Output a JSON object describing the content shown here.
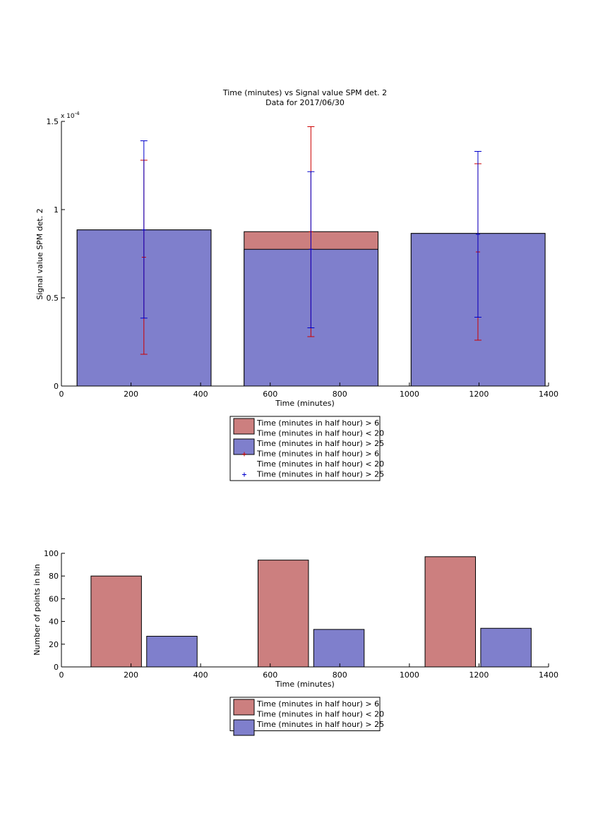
{
  "chart_data": [
    {
      "type": "bar",
      "title": "Time (minutes) vs Signal value SPM det. 2",
      "subtitle": "Data for 2017/06/30",
      "xlabel": "Time (minutes)",
      "ylabel": "Signal value SPM det. 2",
      "y_exponent_label": "x 10",
      "y_exponent_power": "-4",
      "xlim": [
        0,
        1400
      ],
      "ylim": [
        0,
        1.5
      ],
      "xticks": [
        0,
        200,
        400,
        600,
        800,
        1000,
        1200,
        1400
      ],
      "xtick_labels": [
        "0",
        "200",
        "400",
        "600",
        "800",
        "1000",
        "1200",
        "1400"
      ],
      "yticks": [
        0,
        0.5,
        1,
        1.5
      ],
      "ytick_labels": [
        "0",
        "0.5",
        "1",
        "1.5"
      ],
      "bins": [
        {
          "x_start": 45,
          "x_end": 430,
          "red_value": 0.885,
          "blue_value": 0.885
        },
        {
          "x_start": 525,
          "x_end": 910,
          "red_value": 0.875,
          "blue_value": 0.775
        },
        {
          "x_start": 1005,
          "x_end": 1390,
          "red_value": 0.865,
          "blue_value": 0.865
        }
      ],
      "errorbars_red": [
        {
          "x": 237,
          "y": 0.73,
          "low": 0.18,
          "high": 1.28
        },
        {
          "x": 717,
          "y": 0.875,
          "low": 0.28,
          "high": 1.47
        },
        {
          "x": 1197,
          "y": 0.76,
          "low": 0.26,
          "high": 1.26
        }
      ],
      "errorbars_blue": [
        {
          "x": 237,
          "y": 0.885,
          "low": 0.385,
          "high": 1.39
        },
        {
          "x": 717,
          "y": 0.775,
          "low": 0.33,
          "high": 1.215
        },
        {
          "x": 1197,
          "y": 0.86,
          "low": 0.39,
          "high": 1.33
        }
      ],
      "legend_placement": "below",
      "legend": [
        {
          "kind": "patch",
          "color": "#cc7f7f",
          "line1": "Time (minutes in half hour) > 6",
          "line2": "Time (minutes in half hour) < 20"
        },
        {
          "kind": "patch",
          "color": "#7f7fcc",
          "line1": "Time (minutes in half hour) > 25"
        },
        {
          "kind": "marker",
          "color": "#cc0000",
          "line1": "Time (minutes in half hour) > 6",
          "line2": "Time (minutes in half hour) < 20"
        },
        {
          "kind": "marker",
          "color": "#0000cc",
          "line1": "Time (minutes in half hour) > 25"
        }
      ],
      "grid": false
    },
    {
      "type": "bar",
      "xlabel": "Time (minutes)",
      "ylabel": "Number of points in bin",
      "xlim": [
        0,
        1400
      ],
      "ylim": [
        0,
        100
      ],
      "xticks": [
        0,
        200,
        400,
        600,
        800,
        1000,
        1200,
        1400
      ],
      "xtick_labels": [
        "0",
        "200",
        "400",
        "600",
        "800",
        "1000",
        "1200",
        "1400"
      ],
      "yticks": [
        0,
        20,
        40,
        60,
        80,
        100
      ],
      "ytick_labels": [
        "0",
        "20",
        "40",
        "60",
        "80",
        "100"
      ],
      "bars": [
        {
          "series": "red",
          "x_start": 85,
          "x_end": 230,
          "value": 80
        },
        {
          "series": "blue",
          "x_start": 245,
          "x_end": 390,
          "value": 27
        },
        {
          "series": "red",
          "x_start": 565,
          "x_end": 710,
          "value": 94
        },
        {
          "series": "blue",
          "x_start": 725,
          "x_end": 870,
          "value": 33
        },
        {
          "series": "red",
          "x_start": 1045,
          "x_end": 1190,
          "value": 97
        },
        {
          "series": "blue",
          "x_start": 1205,
          "x_end": 1350,
          "value": 34
        }
      ],
      "legend_placement": "below",
      "legend": [
        {
          "kind": "patch",
          "color": "#cc7f7f",
          "line1": "Time (minutes in half hour) > 6",
          "line2": "Time (minutes in half hour) < 20"
        },
        {
          "kind": "patch",
          "color": "#7f7fcc",
          "line1": "Time (minutes in half hour) > 25"
        }
      ],
      "grid": false
    }
  ],
  "colors": {
    "red_fill": "#cc7f7f",
    "blue_fill": "#7f7fcc",
    "red_error": "#cc0000",
    "blue_error": "#0000cc"
  }
}
